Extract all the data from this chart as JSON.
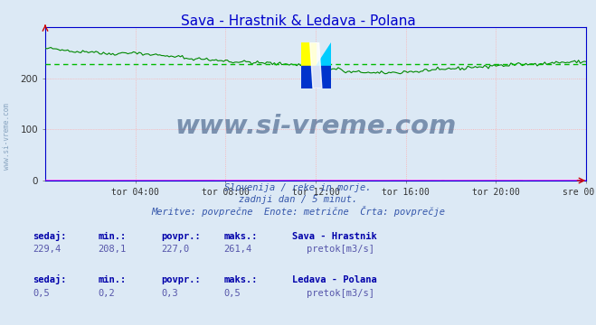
{
  "title": "Sava - Hrastnik & Ledava - Polana",
  "title_color": "#0000cc",
  "bg_color": "#dce9f5",
  "plot_bg_color": "#dce9f5",
  "xlim": [
    0,
    288
  ],
  "ylim": [
    0,
    300
  ],
  "yticks": [
    0,
    100,
    200
  ],
  "xtick_labels": [
    "tor 04:00",
    "tor 08:00",
    "tor 12:00",
    "tor 16:00",
    "tor 20:00",
    "sre 00:00"
  ],
  "xtick_positions": [
    48,
    96,
    144,
    192,
    240,
    288
  ],
  "sava_color": "#008800",
  "sava_avg_color": "#00bb00",
  "ledava_color": "#ff00ff",
  "sava_avg": 227.0,
  "ledava_avg": 0.3,
  "watermark": "www.si-vreme.com",
  "watermark_color": "#1a3a6b",
  "watermark_alpha": 0.5,
  "subtitle1": "Slovenija / reke in morje.",
  "subtitle2": "zadnji dan / 5 minut.",
  "subtitle3": "Meritve: povprečne  Enote: metrične  Črta: povprečje",
  "legend1_label": "Sava - Hrastnik",
  "legend1_unit": "pretok[m3/s]",
  "legend1_color": "#00cc00",
  "legend2_label": "Ledava - Polana",
  "legend2_unit": "pretok[m3/s]",
  "legend2_color": "#ff00ff",
  "stat1_sedaj": "229,4",
  "stat1_min": "208,1",
  "stat1_povpr": "227,0",
  "stat1_maks": "261,4",
  "stat2_sedaj": "0,5",
  "stat2_min": "0,2",
  "stat2_povpr": "0,3",
  "stat2_maks": "0,5",
  "label_color": "#0000aa",
  "stat_value_color": "#5555aa"
}
